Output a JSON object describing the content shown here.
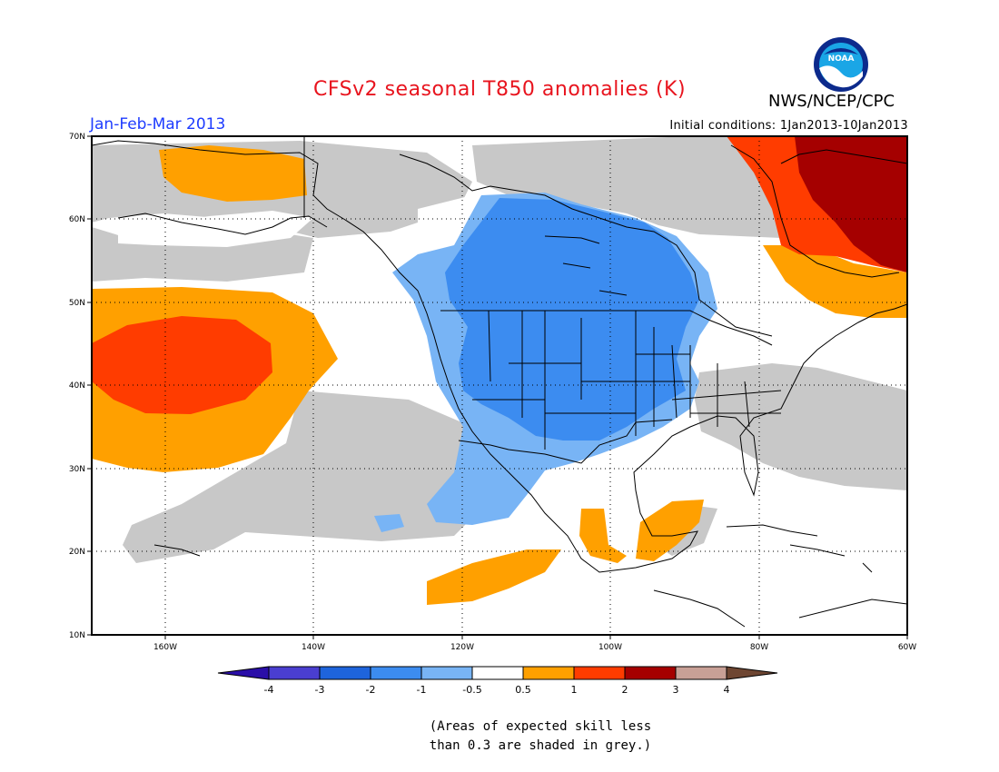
{
  "header": {
    "title": "CFSv2 seasonal T850 anomalies (K)",
    "period": "Jan-Feb-Mar 2013",
    "initial_conditions": "Initial conditions: 1Jan2013-10Jan2013",
    "organization": "NWS/NCEP/CPC",
    "logo_text": "NOAA"
  },
  "map": {
    "lat_labels": [
      "70N",
      "60N",
      "50N",
      "40N",
      "30N",
      "20N",
      "10N"
    ],
    "lon_labels": [
      "160W",
      "140W",
      "120W",
      "100W",
      "80W",
      "60W"
    ],
    "extent": {
      "lon": [
        -170,
        -60
      ],
      "lat": [
        10,
        70
      ]
    }
  },
  "colorbar": {
    "labels": [
      "-4",
      "-3",
      "-2",
      "-1",
      "-0.5",
      "0.5",
      "1",
      "2",
      "3",
      "4"
    ],
    "colors": [
      "#2a0ea8",
      "#4a3ed0",
      "#1e64dc",
      "#3c8cf0",
      "#78b4f5",
      "#ffffff",
      "#ffa000",
      "#ff3c00",
      "#a50000",
      "#c8a096",
      "#6e4632"
    ]
  },
  "footnote": {
    "line1": "(Areas of expected skill less",
    "line2": "than 0.3 are shaded in grey.)"
  }
}
